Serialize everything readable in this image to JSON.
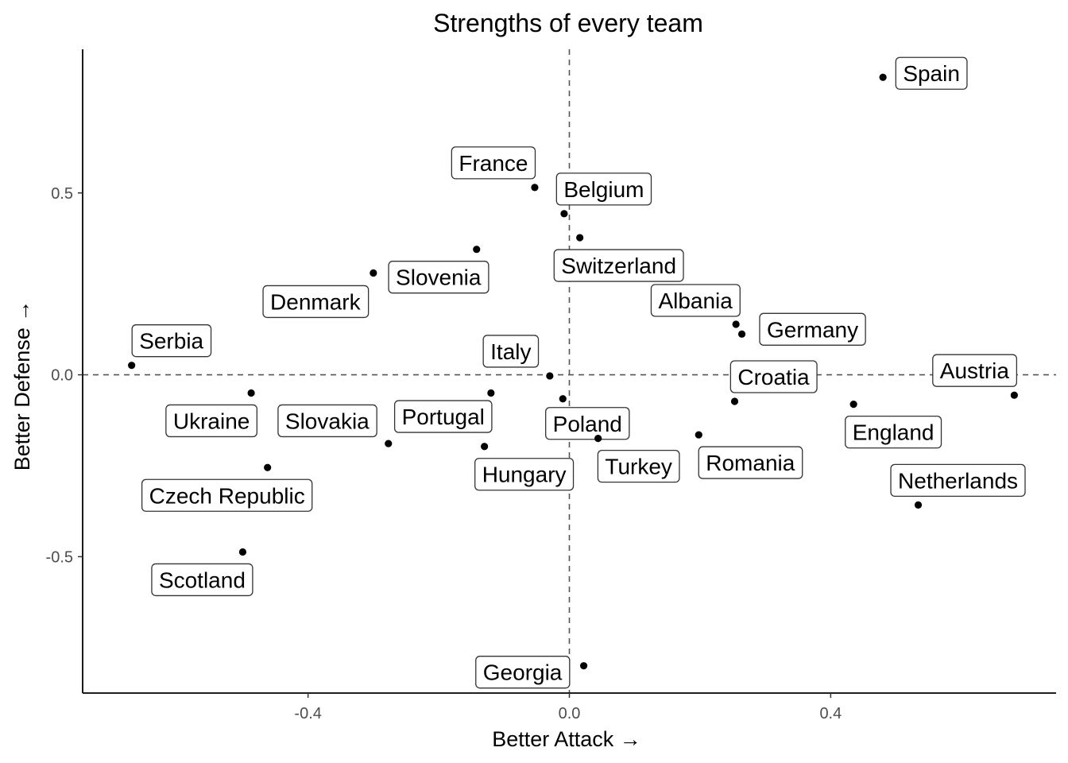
{
  "chart_data": {
    "type": "scatter",
    "title": "Strengths of every team",
    "xlabel": "Better Attack →",
    "ylabel": "Better Defense →",
    "xlim": [
      -0.745,
      0.745
    ],
    "ylim": [
      -0.875,
      0.895
    ],
    "xticks": [
      -0.4,
      0.0,
      0.4
    ],
    "xtick_labels": [
      "-0.4",
      "0.0",
      "0.4"
    ],
    "yticks": [
      -0.5,
      0.0,
      0.5
    ],
    "ytick_labels": [
      "-0.5",
      "0.0",
      "0.5"
    ],
    "reference_lines": {
      "x": 0,
      "y": 0
    },
    "grid": false,
    "points": [
      {
        "team": "Spain",
        "x": 0.48,
        "y": 0.818
      },
      {
        "team": "France",
        "x": -0.053,
        "y": 0.515
      },
      {
        "team": "Belgium",
        "x": -0.008,
        "y": 0.443
      },
      {
        "team": "Switzerland",
        "x": 0.016,
        "y": 0.377
      },
      {
        "team": "Slovenia",
        "x": -0.142,
        "y": 0.345
      },
      {
        "team": "Denmark",
        "x": -0.3,
        "y": 0.28
      },
      {
        "team": "Albania",
        "x": 0.255,
        "y": 0.139
      },
      {
        "team": "Germany",
        "x": 0.264,
        "y": 0.112
      },
      {
        "team": "Serbia",
        "x": -0.67,
        "y": 0.026
      },
      {
        "team": "Italy",
        "x": -0.03,
        "y": -0.003
      },
      {
        "team": "Croatia",
        "x": 0.253,
        "y": -0.073
      },
      {
        "team": "Austria",
        "x": 0.681,
        "y": -0.056
      },
      {
        "team": "Ukraine",
        "x": -0.487,
        "y": -0.05
      },
      {
        "team": "Slovakia",
        "x": -0.12,
        "y": -0.05
      },
      {
        "team": "Poland",
        "x": -0.01,
        "y": -0.066
      },
      {
        "team": "England",
        "x": 0.435,
        "y": -0.081
      },
      {
        "team": "Portugal",
        "x": -0.277,
        "y": -0.189
      },
      {
        "team": "Hungary",
        "x": -0.13,
        "y": -0.197
      },
      {
        "team": "Turkey",
        "x": 0.044,
        "y": -0.175
      },
      {
        "team": "Romania",
        "x": 0.198,
        "y": -0.165
      },
      {
        "team": "Czech Republic",
        "x": -0.462,
        "y": -0.255
      },
      {
        "team": "Netherlands",
        "x": 0.534,
        "y": -0.358
      },
      {
        "team": "Scotland",
        "x": -0.5,
        "y": -0.487
      },
      {
        "team": "Georgia",
        "x": 0.022,
        "y": -0.8
      }
    ]
  }
}
